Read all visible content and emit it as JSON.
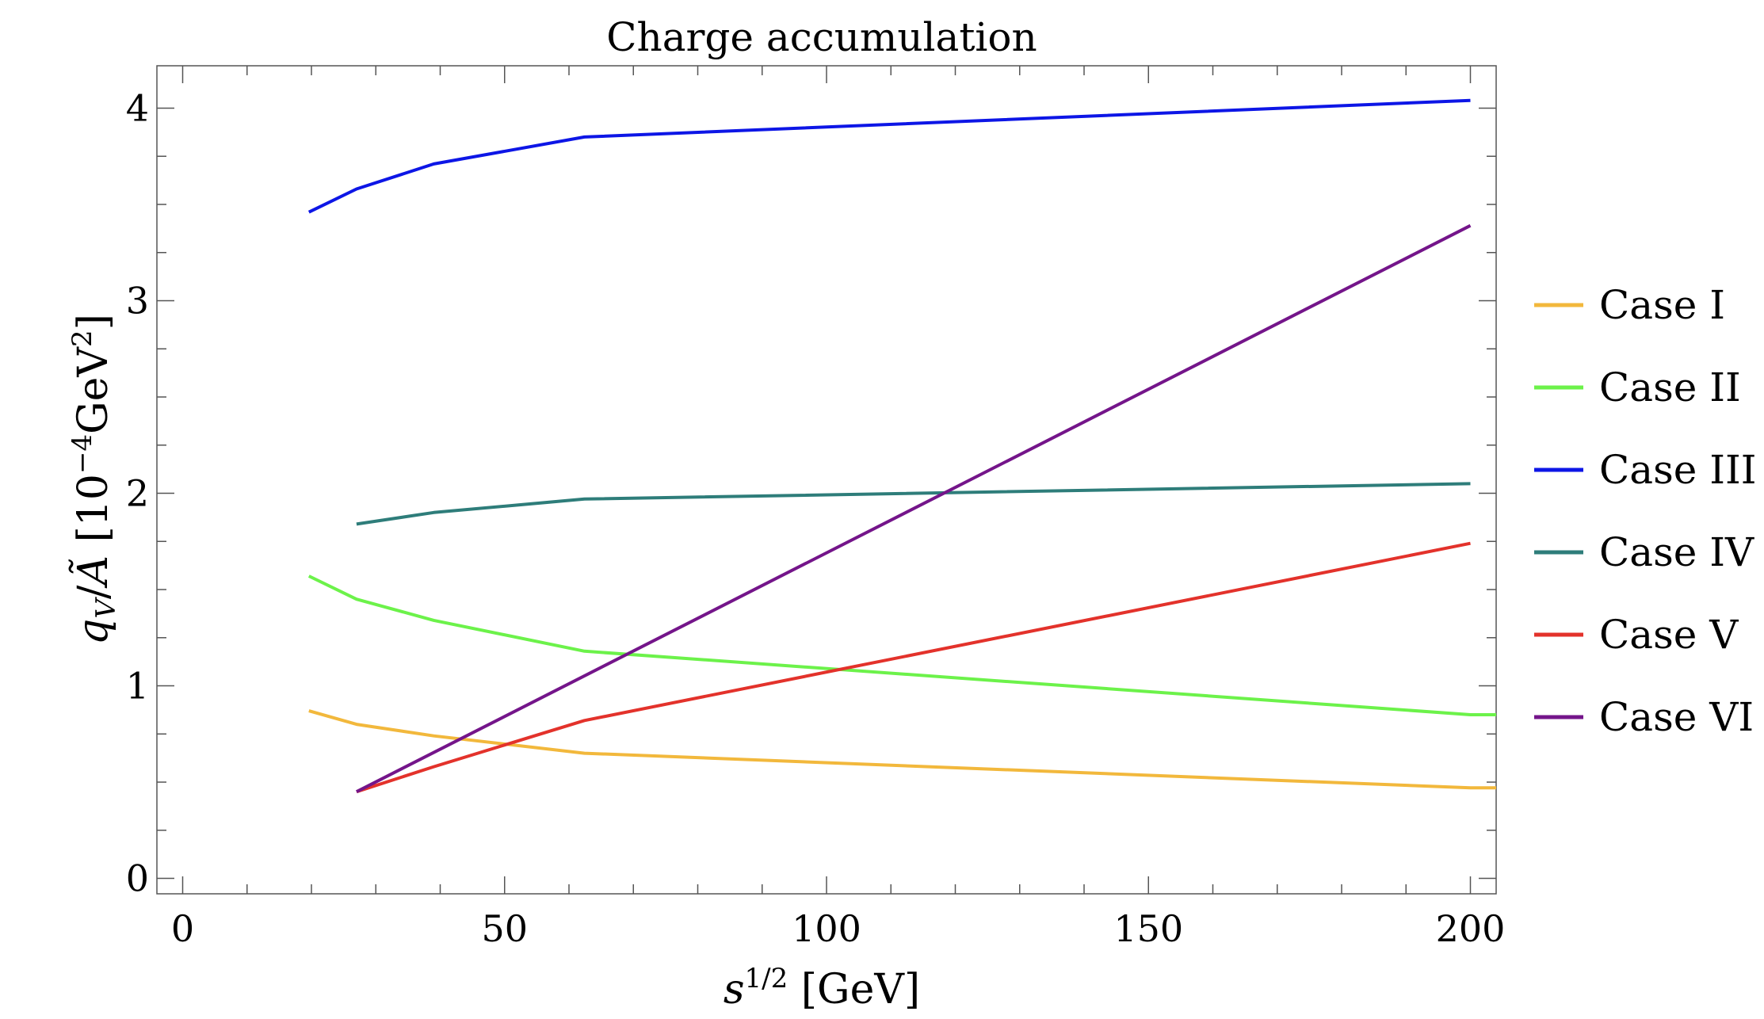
{
  "chart_data": {
    "type": "line",
    "title": "Charge accumulation",
    "xlabel": {
      "main": "s",
      "sup": "1/2",
      "unit": " [GeV]"
    },
    "ylabel": {
      "main": "q",
      "sub": "V",
      "div": "/",
      "den": "Ã",
      "unit_pre": " [10",
      "unit_sup": "−4",
      "unit_mid": "GeV",
      "unit_sup2": "2",
      "unit_post": "]"
    },
    "xlim": [
      -4,
      204
    ],
    "ylim": [
      -0.08,
      4.22
    ],
    "xticks": [
      "0",
      "50",
      "100",
      "150",
      "200"
    ],
    "xtick_values": [
      0,
      50,
      100,
      150,
      200
    ],
    "yticks": [
      "0",
      "1",
      "2",
      "3",
      "4"
    ],
    "ytick_values": [
      0,
      1,
      2,
      3,
      4
    ],
    "grid": false,
    "legend_position": "right",
    "series": [
      {
        "name": "Case I",
        "color": "#f2b83c",
        "x": [
          19.6,
          27,
          39,
          62.4,
          200,
          204
        ],
        "y": [
          0.87,
          0.8,
          0.74,
          0.65,
          0.47,
          0.47
        ]
      },
      {
        "name": "Case II",
        "color": "#6cf24a",
        "x": [
          19.6,
          27,
          39,
          62.4,
          200,
          204
        ],
        "y": [
          1.57,
          1.45,
          1.34,
          1.18,
          0.85,
          0.85
        ]
      },
      {
        "name": "Case III",
        "color": "#0d16e6",
        "x": [
          19.6,
          27,
          39,
          62.4,
          200
        ],
        "y": [
          3.46,
          3.58,
          3.71,
          3.85,
          4.04
        ]
      },
      {
        "name": "Case IV",
        "color": "#2e7d7a",
        "x": [
          27,
          39,
          62.4,
          200
        ],
        "y": [
          1.84,
          1.9,
          1.97,
          2.05
        ]
      },
      {
        "name": "Case V",
        "color": "#e3322b",
        "x": [
          27,
          39,
          62.4,
          200
        ],
        "y": [
          0.45,
          0.58,
          0.82,
          1.74
        ]
      },
      {
        "name": "Case VI",
        "color": "#74158a",
        "x": [
          27,
          200
        ],
        "y": [
          0.45,
          3.39
        ]
      }
    ]
  }
}
